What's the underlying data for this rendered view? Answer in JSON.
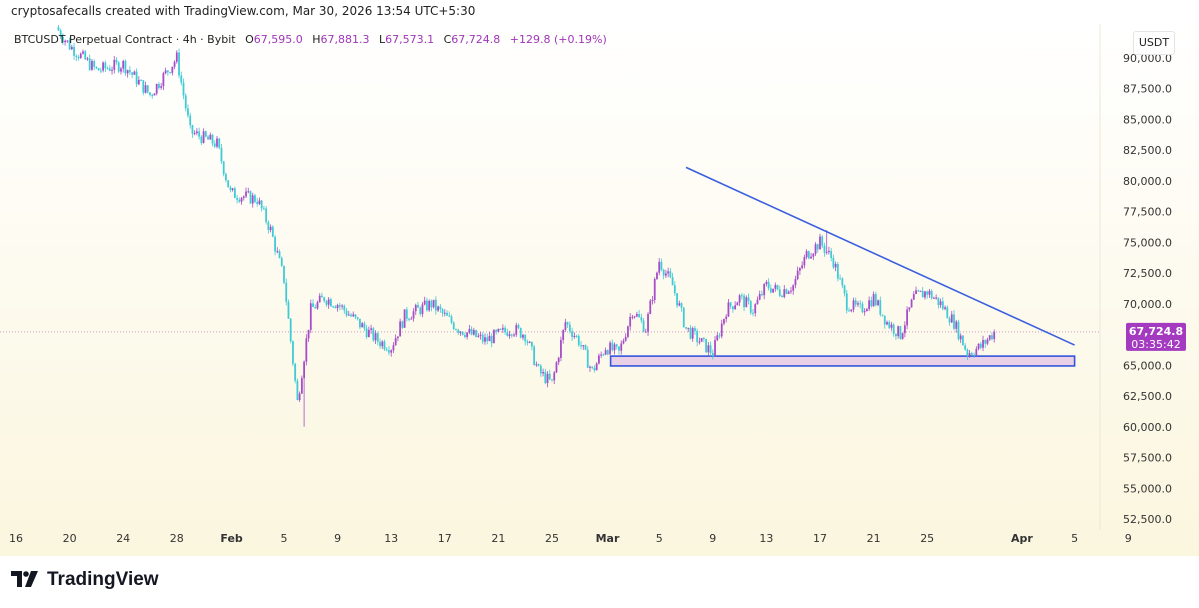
{
  "credit": "cryptosafecalls created with TradingView.com, Mar 30, 2026 13:54 UTC+5:30",
  "legend": {
    "symbol": "BTCUSDT Perpetual Contract · 4h · Bybit",
    "o_label": "O",
    "o": "67,595.0",
    "h_label": "H",
    "h": "67,881.3",
    "l_label": "L",
    "l": "67,573.1",
    "c_label": "C",
    "c": "67,724.8",
    "change": "+129.8 (+0.19%)"
  },
  "unit": "USDT",
  "last_price_label": "67,724.8",
  "countdown": "03:35:42",
  "logo_text": "TradingView",
  "colors": {
    "bull": "#a64cc8",
    "bear": "#3fcad6",
    "trendline": "#3a5fe0",
    "zone_fill": "#ead0e6",
    "zone_border": "#3355dd",
    "price_label": "#a33ac0"
  },
  "chart_data": {
    "type": "candlestick",
    "interval": "4h",
    "y_ticks": [
      "90,000.0",
      "87,500.0",
      "85,000.0",
      "82,500.0",
      "80,000.0",
      "77,500.0",
      "75,000.0",
      "72,500.0",
      "70,000.0",
      "65,000.0",
      "62,500.0",
      "60,000.0",
      "57,500.0",
      "55,000.0",
      "52,500.0"
    ],
    "ylim": [
      51500,
      92500
    ],
    "x_ticks": [
      {
        "label": "16",
        "date": "2026-01-16"
      },
      {
        "label": "20",
        "date": "2026-01-20"
      },
      {
        "label": "24",
        "date": "2026-01-24"
      },
      {
        "label": "28",
        "date": "2026-01-28"
      },
      {
        "label": "Feb",
        "date": "2026-02-01",
        "bold": true
      },
      {
        "label": "5",
        "date": "2026-02-05"
      },
      {
        "label": "9",
        "date": "2026-02-09"
      },
      {
        "label": "13",
        "date": "2026-02-13"
      },
      {
        "label": "17",
        "date": "2026-02-17"
      },
      {
        "label": "21",
        "date": "2026-02-21"
      },
      {
        "label": "25",
        "date": "2026-02-25"
      },
      {
        "label": "Mar",
        "date": "2026-03-01",
        "bold": true
      },
      {
        "label": "5",
        "date": "2026-03-05"
      },
      {
        "label": "9",
        "date": "2026-03-09"
      },
      {
        "label": "13",
        "date": "2026-03-13"
      },
      {
        "label": "17",
        "date": "2026-03-17"
      },
      {
        "label": "21",
        "date": "2026-03-21"
      },
      {
        "label": "25",
        "date": "2026-03-25"
      },
      {
        "label": "Apr",
        "date": "2026-04-01",
        "bold": true
      },
      {
        "label": "5",
        "date": "2026-04-05"
      },
      {
        "label": "9",
        "date": "2026-04-09"
      }
    ],
    "xlim": [
      "2026-01-15",
      "2026-04-11"
    ],
    "price_path": [
      [
        "2026-01-19",
        92500
      ],
      [
        "2026-01-20",
        91000
      ],
      [
        "2026-01-22",
        89000
      ],
      [
        "2026-01-24",
        89500
      ],
      [
        "2026-01-26",
        87000
      ],
      [
        "2026-01-28",
        90000
      ],
      [
        "2026-01-29",
        84000
      ],
      [
        "2026-01-31",
        83000
      ],
      [
        "2026-02-01",
        79000
      ],
      [
        "2026-02-03",
        78500
      ],
      [
        "2026-02-04",
        76000
      ],
      [
        "2026-02-05",
        72000
      ],
      [
        "2026-02-06",
        62000
      ],
      [
        "2026-02-07",
        69500
      ],
      [
        "2026-02-08",
        70500
      ],
      [
        "2026-02-09",
        70000
      ],
      [
        "2026-02-10",
        69000
      ],
      [
        "2026-02-12",
        67000
      ],
      [
        "2026-02-13",
        66500
      ],
      [
        "2026-02-14",
        69000
      ],
      [
        "2026-02-16",
        70000
      ],
      [
        "2026-02-18",
        68000
      ],
      [
        "2026-02-20",
        67000
      ],
      [
        "2026-02-22",
        68000
      ],
      [
        "2026-02-23",
        67500
      ],
      [
        "2026-02-24",
        64500
      ],
      [
        "2026-02-25",
        63500
      ],
      [
        "2026-02-26",
        68500
      ],
      [
        "2026-02-27",
        67000
      ],
      [
        "2026-02-28",
        64500
      ],
      [
        "2026-03-01",
        66500
      ],
      [
        "2026-03-02",
        66000
      ],
      [
        "2026-03-03",
        69500
      ],
      [
        "2026-03-04",
        68000
      ],
      [
        "2026-03-05",
        73500
      ],
      [
        "2026-03-06",
        71500
      ],
      [
        "2026-03-07",
        68000
      ],
      [
        "2026-03-08",
        67000
      ],
      [
        "2026-03-09",
        66000
      ],
      [
        "2026-03-10",
        69500
      ],
      [
        "2026-03-11",
        70500
      ],
      [
        "2026-03-12",
        69500
      ],
      [
        "2026-03-13",
        71500
      ],
      [
        "2026-03-14",
        71000
      ],
      [
        "2026-03-15",
        71500
      ],
      [
        "2026-03-16",
        74000
      ],
      [
        "2026-03-17",
        75000
      ],
      [
        "2026-03-18",
        73500
      ],
      [
        "2026-03-19",
        70000
      ],
      [
        "2026-03-20",
        69500
      ],
      [
        "2026-03-21",
        70500
      ],
      [
        "2026-03-22",
        68500
      ],
      [
        "2026-03-23",
        67500
      ],
      [
        "2026-03-24",
        70500
      ],
      [
        "2026-03-25",
        71000
      ],
      [
        "2026-03-26",
        70000
      ],
      [
        "2026-03-27",
        68500
      ],
      [
        "2026-03-28",
        66000
      ],
      [
        "2026-03-29",
        66500
      ],
      [
        "2026-03-30",
        67724.8
      ]
    ],
    "extreme_wicks": [
      [
        "2026-02-06",
        60000
      ],
      [
        "2026-03-17",
        76000
      ]
    ],
    "last_price": 67724.8,
    "trendline": [
      [
        "2026-03-07",
        81100
      ],
      [
        "2026-04-05",
        66650
      ]
    ],
    "support_zone": {
      "from": "2026-03-01",
      "to": "2026-04-05",
      "low": 64950,
      "high": 65750
    }
  }
}
